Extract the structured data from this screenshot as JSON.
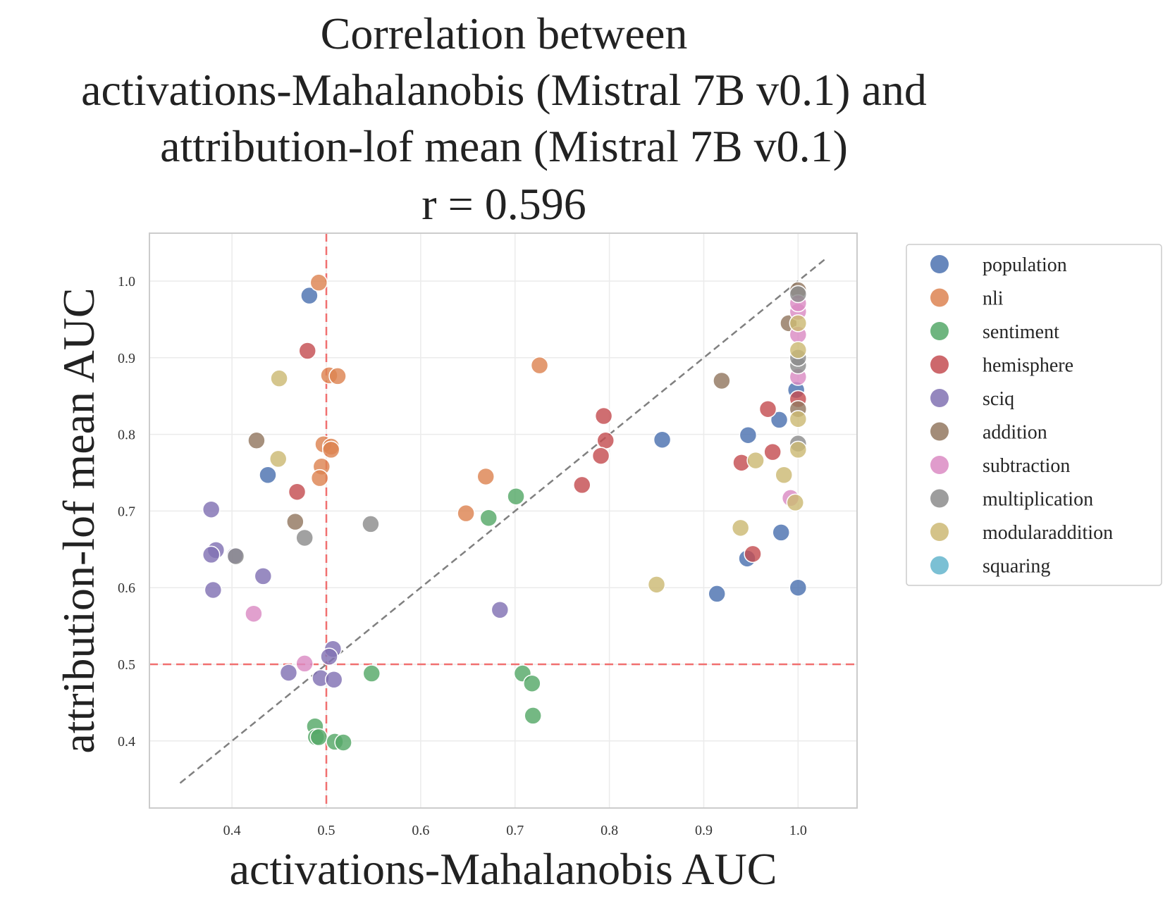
{
  "chart_data": {
    "type": "scatter",
    "title_lines": [
      "Correlation between",
      "activations-Mahalanobis (Mistral 7B v0.1) and",
      "attribution-lof mean (Mistral 7B v0.1)",
      "r = 0.596"
    ],
    "xlabel": "activations-Mahalanobis AUC",
    "ylabel": "attribution-lof mean AUC",
    "xlim": [
      0.3125,
      1.0625
    ],
    "ylim": [
      0.3125,
      1.0625
    ],
    "xticks": [
      "0.4",
      "0.5",
      "0.6",
      "0.7",
      "0.8",
      "0.9",
      "1.0"
    ],
    "yticks": [
      "0.4",
      "0.5",
      "0.6",
      "0.7",
      "0.8",
      "0.9",
      "1.0"
    ],
    "grid": true,
    "legend_position": "outside-right",
    "reference_lines": {
      "vertical_x": 0.5,
      "horizontal_y": 0.5,
      "diagonal_from": 0.345,
      "diagonal_to": 1.03
    },
    "series": [
      {
        "name": "population",
        "color": "#4C72B0",
        "points": [
          [
            0.482,
            0.981
          ],
          [
            0.438,
            0.747
          ],
          [
            0.856,
            0.793
          ],
          [
            0.947,
            0.799
          ],
          [
            0.98,
            0.819
          ],
          [
            0.998,
            0.858
          ],
          [
            0.982,
            0.672
          ],
          [
            0.946,
            0.638
          ],
          [
            0.914,
            0.592
          ],
          [
            1.0,
            0.6
          ]
        ]
      },
      {
        "name": "nli",
        "color": "#DD8452",
        "points": [
          [
            0.492,
            0.998
          ],
          [
            0.503,
            0.877
          ],
          [
            0.512,
            0.876
          ],
          [
            0.726,
            0.89
          ],
          [
            0.497,
            0.787
          ],
          [
            0.505,
            0.784
          ],
          [
            0.505,
            0.78
          ],
          [
            0.495,
            0.758
          ],
          [
            0.493,
            0.743
          ],
          [
            0.669,
            0.745
          ],
          [
            0.648,
            0.697
          ]
        ]
      },
      {
        "name": "sentiment",
        "color": "#55A868",
        "points": [
          [
            0.701,
            0.719
          ],
          [
            0.672,
            0.691
          ],
          [
            0.548,
            0.488
          ],
          [
            0.708,
            0.488
          ],
          [
            0.718,
            0.475
          ],
          [
            0.719,
            0.433
          ],
          [
            0.488,
            0.419
          ],
          [
            0.489,
            0.405
          ],
          [
            0.492,
            0.405
          ],
          [
            0.509,
            0.399
          ],
          [
            0.518,
            0.398
          ]
        ]
      },
      {
        "name": "hemisphere",
        "color": "#C44E52",
        "points": [
          [
            0.48,
            0.909
          ],
          [
            0.469,
            0.725
          ],
          [
            0.794,
            0.824
          ],
          [
            0.796,
            0.792
          ],
          [
            0.791,
            0.772
          ],
          [
            0.771,
            0.734
          ],
          [
            0.968,
            0.833
          ],
          [
            0.973,
            0.777
          ],
          [
            0.94,
            0.763
          ],
          [
            0.952,
            0.644
          ],
          [
            1.0,
            0.846
          ]
        ]
      },
      {
        "name": "sciq",
        "color": "#8172B3",
        "points": [
          [
            0.378,
            0.702
          ],
          [
            0.383,
            0.649
          ],
          [
            0.378,
            0.643
          ],
          [
            0.403,
            0.642
          ],
          [
            0.433,
            0.615
          ],
          [
            0.38,
            0.597
          ],
          [
            0.684,
            0.571
          ],
          [
            0.507,
            0.52
          ],
          [
            0.503,
            0.51
          ],
          [
            0.46,
            0.489
          ],
          [
            0.494,
            0.482
          ],
          [
            0.508,
            0.48
          ]
        ]
      },
      {
        "name": "addition",
        "color": "#937860",
        "points": [
          [
            0.426,
            0.792
          ],
          [
            0.467,
            0.686
          ],
          [
            0.919,
            0.87
          ],
          [
            0.99,
            0.945
          ],
          [
            1.0,
            0.988
          ],
          [
            1.0,
            0.833
          ]
        ]
      },
      {
        "name": "subtraction",
        "color": "#DA8BC3",
        "points": [
          [
            0.423,
            0.566
          ],
          [
            0.477,
            0.501
          ],
          [
            0.992,
            0.717
          ],
          [
            1.0,
            0.875
          ],
          [
            1.0,
            0.93
          ],
          [
            1.0,
            0.96
          ],
          [
            1.0,
            0.971
          ]
        ]
      },
      {
        "name": "multiplication",
        "color": "#8C8C8C",
        "points": [
          [
            0.404,
            0.641
          ],
          [
            0.477,
            0.665
          ],
          [
            0.547,
            0.683
          ],
          [
            1.0,
            0.788
          ],
          [
            1.0,
            0.89
          ],
          [
            1.0,
            0.9
          ],
          [
            1.0,
            0.983
          ]
        ]
      },
      {
        "name": "modularaddition",
        "color": "#CCB974",
        "points": [
          [
            0.45,
            0.873
          ],
          [
            0.449,
            0.768
          ],
          [
            0.85,
            0.604
          ],
          [
            0.939,
            0.678
          ],
          [
            0.955,
            0.766
          ],
          [
            0.985,
            0.747
          ],
          [
            0.997,
            0.711
          ],
          [
            1.0,
            0.78
          ],
          [
            1.0,
            0.82
          ],
          [
            1.0,
            0.91
          ],
          [
            1.0,
            0.945
          ]
        ]
      },
      {
        "name": "squaring",
        "color": "#64B5CD",
        "points": []
      }
    ]
  }
}
